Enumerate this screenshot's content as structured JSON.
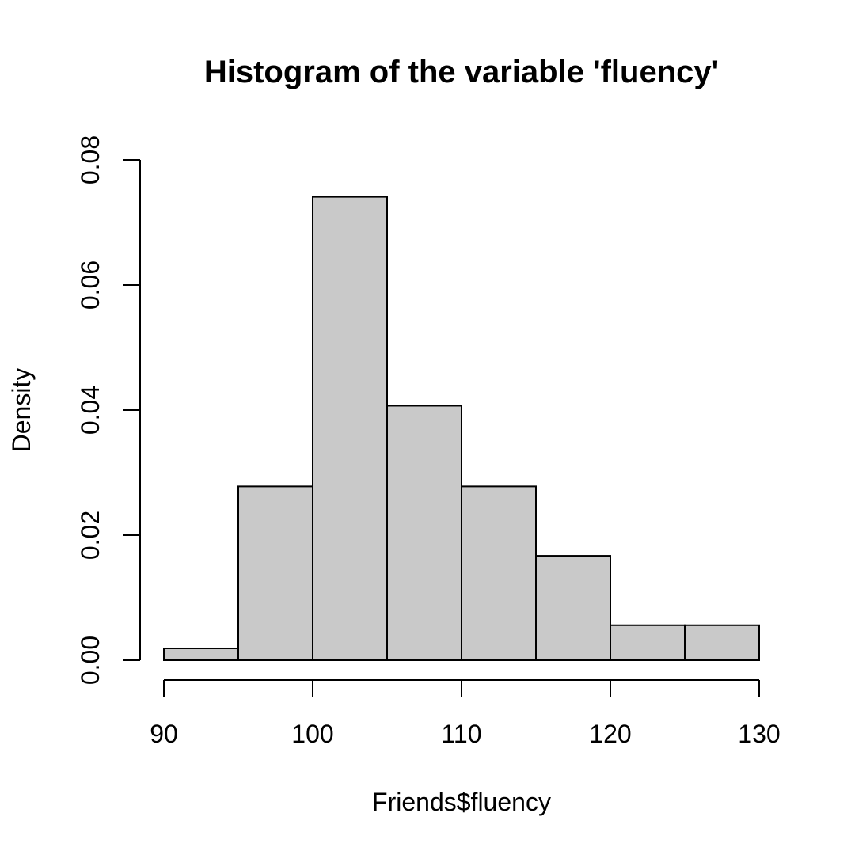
{
  "chart_data": {
    "type": "bar",
    "subtype": "histogram",
    "title": "Histogram of the variable 'fluency'",
    "xlabel": "Friends$fluency",
    "ylabel": "Density",
    "bins": [
      {
        "start": 90,
        "end": 95,
        "density": 0.0019
      },
      {
        "start": 95,
        "end": 100,
        "density": 0.0278
      },
      {
        "start": 100,
        "end": 105,
        "density": 0.0741
      },
      {
        "start": 105,
        "end": 110,
        "density": 0.0407
      },
      {
        "start": 110,
        "end": 115,
        "density": 0.0278
      },
      {
        "start": 115,
        "end": 120,
        "density": 0.0167
      },
      {
        "start": 120,
        "end": 125,
        "density": 0.0056
      },
      {
        "start": 125,
        "end": 130,
        "density": 0.0056
      }
    ],
    "xlim": [
      90,
      130
    ],
    "ylim": [
      0,
      0.08
    ],
    "x_ticks": [
      90,
      100,
      110,
      120,
      130
    ],
    "x_tick_labels": [
      "90",
      "100",
      "110",
      "120",
      "130"
    ],
    "y_ticks": [
      0,
      0.02,
      0.04,
      0.06,
      0.08
    ],
    "y_tick_labels": [
      "0.00",
      "0.02",
      "0.04",
      "0.06",
      "0.08"
    ],
    "bar_color": "#c9c9c9",
    "grid": false,
    "legend": "none"
  }
}
